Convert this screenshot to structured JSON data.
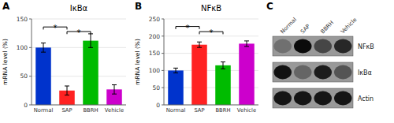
{
  "chart_data": [
    {
      "type": "bar",
      "panel": "A",
      "title": "IκBα",
      "y_label": "mRNA level (%)",
      "ylim": [
        0,
        150
      ],
      "yticks": [
        0,
        50,
        100,
        150
      ],
      "categories": [
        "Normal",
        "SAP",
        "BBRH",
        "Vehicle"
      ],
      "values": [
        100,
        25,
        112,
        27
      ],
      "errors": [
        8,
        8,
        12,
        8
      ],
      "colors": [
        "#0033CC",
        "#FF2222",
        "#00BB00",
        "#CC00CC"
      ],
      "annotations": [
        {
          "from": "Normal",
          "to": "SAP",
          "y": 136,
          "label": "*"
        },
        {
          "from": "SAP",
          "to": "BBRH",
          "y": 128,
          "label": "*"
        }
      ]
    },
    {
      "type": "bar",
      "panel": "B",
      "title": "NFκB",
      "y_label": "mRNA level (%)",
      "ylim": [
        0,
        250
      ],
      "yticks": [
        0,
        50,
        100,
        150,
        200,
        250
      ],
      "categories": [
        "Normal",
        "SAP",
        "BBRH",
        "Vehicle"
      ],
      "values": [
        100,
        175,
        115,
        178
      ],
      "errors": [
        7,
        8,
        10,
        8
      ],
      "colors": [
        "#0033CC",
        "#FF2222",
        "#00BB00",
        "#CC00CC"
      ],
      "annotations": [
        {
          "from": "Normal",
          "to": "SAP",
          "y": 228,
          "label": "*"
        },
        {
          "from": "SAP",
          "to": "BBRH",
          "y": 213,
          "label": "*"
        }
      ]
    },
    {
      "type": "heatmap",
      "panel": "C",
      "categories": [
        "Normal",
        "SAP",
        "BBRH",
        "Vehicle"
      ],
      "rows": [
        "NFκB",
        "IκBα",
        "Actin"
      ],
      "cells": [
        [
          0.2,
          0.92,
          0.5,
          0.72
        ],
        [
          0.88,
          0.28,
          0.8,
          0.4
        ],
        [
          0.85,
          0.85,
          0.85,
          0.85
        ]
      ]
    }
  ]
}
